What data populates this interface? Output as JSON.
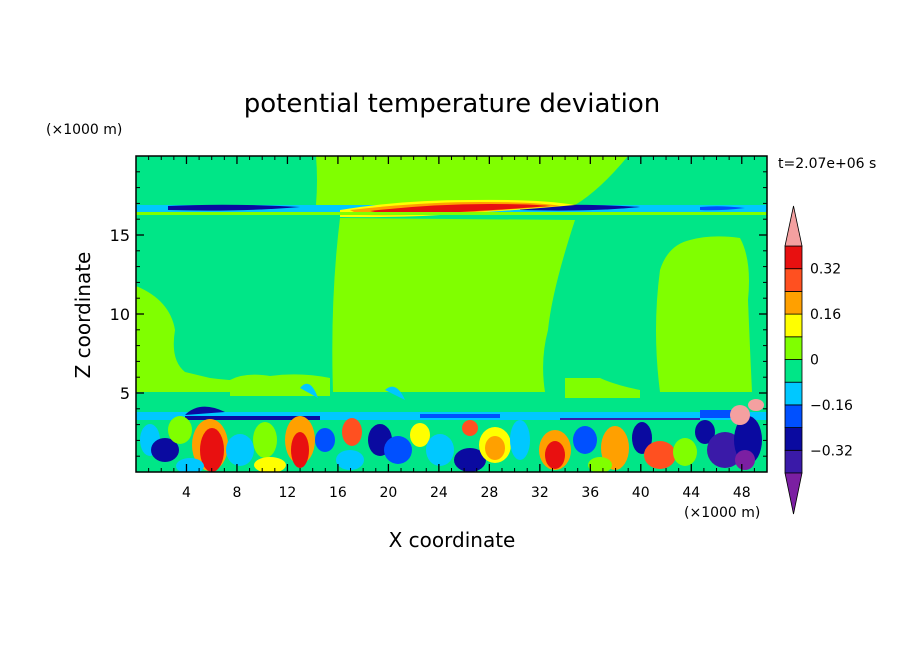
{
  "chart_data": {
    "type": "heatmap",
    "title": "potential temperature deviation",
    "xlabel": "X coordinate",
    "ylabel": "Z coordinate",
    "x_unit": "(×1000 m)",
    "y_unit": "(×1000 m)",
    "time_label": "t=2.07e+06 s",
    "xlim": [
      0,
      50
    ],
    "ylim": [
      0,
      20
    ],
    "x_ticks": [
      4,
      8,
      12,
      16,
      20,
      24,
      28,
      32,
      36,
      40,
      44,
      48
    ],
    "y_ticks": [
      5,
      10,
      15
    ],
    "colorbar": {
      "labels": [
        "0.32",
        "0.16",
        "0",
        "−0.16",
        "−0.32"
      ],
      "label_values": [
        0.32,
        0.16,
        0,
        -0.16,
        -0.32
      ],
      "levels": [
        -0.4,
        -0.32,
        -0.24,
        -0.16,
        -0.08,
        0,
        0.08,
        0.16,
        0.24,
        0.32,
        0.4
      ],
      "colors": [
        "#7b1fa2",
        "#3a1aa8",
        "#0a0aa0",
        "#0050ff",
        "#00c8ff",
        "#00e687",
        "#80ff00",
        "#ffff00",
        "#ffa000",
        "#ff5020",
        "#e81010",
        "#f4a0a0"
      ],
      "extend": "both"
    }
  }
}
